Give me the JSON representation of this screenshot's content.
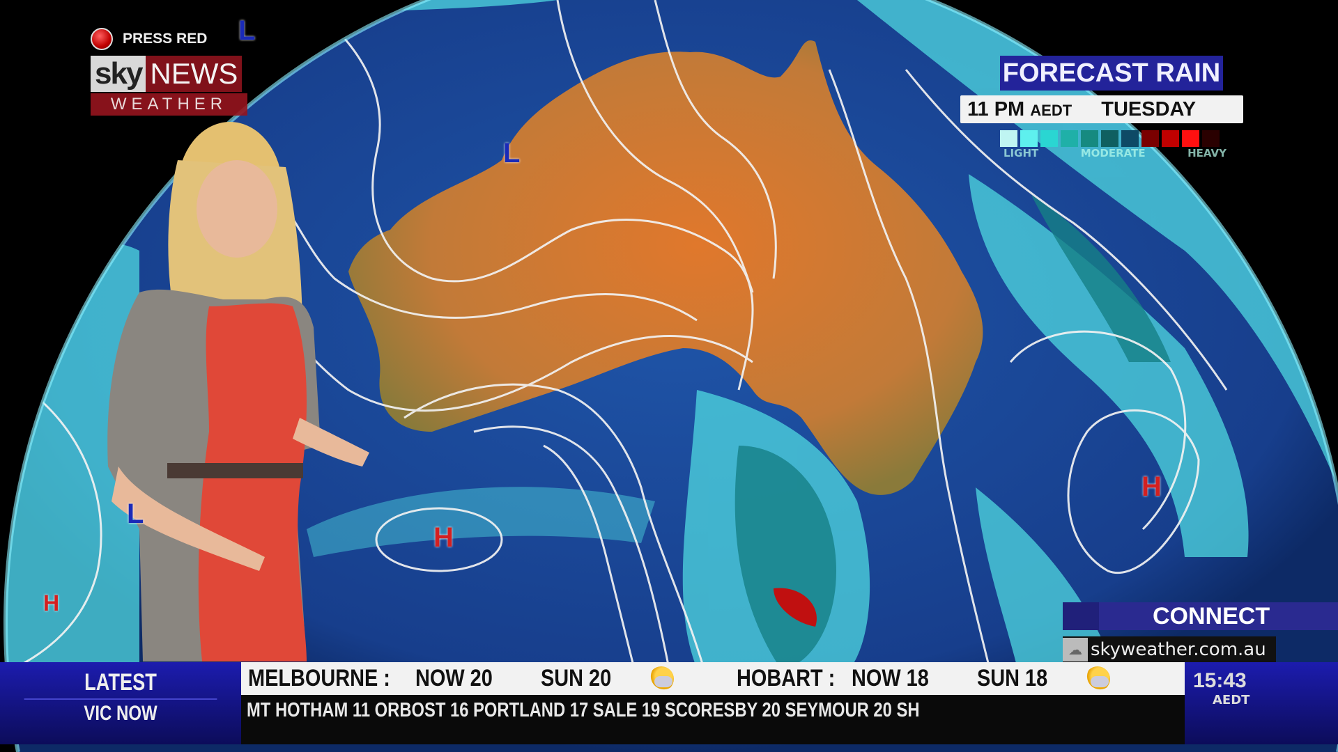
{
  "logo": {
    "press_red": "PRESS RED",
    "sky": "sky",
    "news": "NEWS",
    "weather": "WEATHER"
  },
  "forecast": {
    "title": "FORECAST RAIN",
    "time": "11 PM",
    "timezone": "AEDT",
    "day": "TUESDAY",
    "legend_colors": [
      "#bff5f2",
      "#5ef0ee",
      "#2ad6d2",
      "#1fb0a8",
      "#168a80",
      "#0f5f60",
      "#0e4a66",
      "#7a0000",
      "#c00000",
      "#ff1010",
      "#2a0000"
    ],
    "legend_labels": [
      "LIGHT",
      "MODERATE",
      "HEAVY"
    ]
  },
  "map": {
    "pressure_systems": [
      {
        "type": "L",
        "label": "L"
      },
      {
        "type": "L",
        "label": "L"
      },
      {
        "type": "L",
        "label": "L"
      },
      {
        "type": "H",
        "label": "H"
      },
      {
        "type": "H",
        "label": "H"
      },
      {
        "type": "H",
        "label": "H"
      }
    ]
  },
  "connect": {
    "title": "CONNECT",
    "url": "skyweather.com.au"
  },
  "ticker": {
    "latest": "LATEST",
    "region": "VIC NOW",
    "top_items": [
      {
        "city": "MELBOURNE :",
        "now": "NOW  20",
        "sun": "SUN  20",
        "icon": "partly-sunny-icon"
      },
      {
        "city": "HOBART :",
        "now": "NOW  18",
        "sun": "SUN  18",
        "icon": "partly-sunny-icon"
      }
    ],
    "bottom_text": "MT HOTHAM 11   ORBOST 16   PORTLAND 17   SALE 19   SCORESBY 20   SEYMOUR 20   SH",
    "clock": "15:43",
    "clock_tz": "AEDT"
  },
  "colors": {
    "brand_blue": "#1c1cae",
    "sky_red": "#96141e",
    "ocean": "#1c4a9a",
    "land": "#d07a30"
  }
}
